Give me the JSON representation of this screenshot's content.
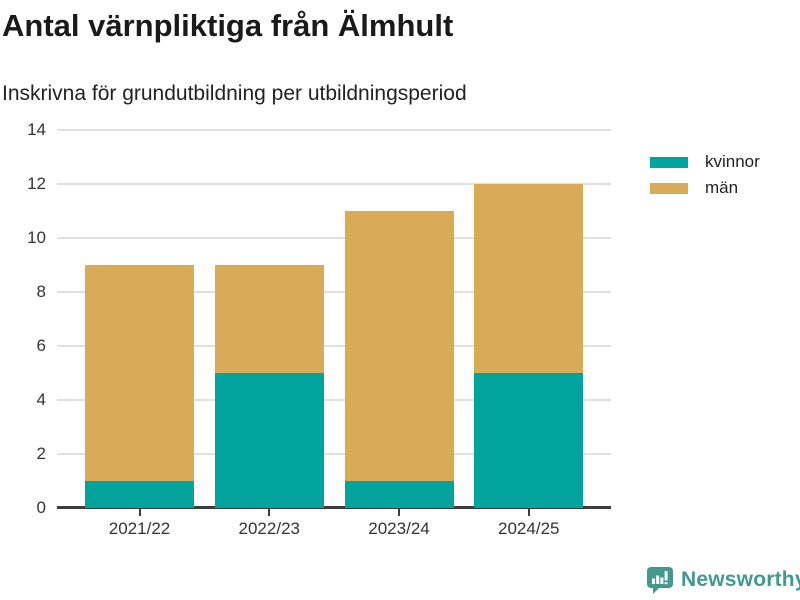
{
  "chart_data": {
    "type": "bar",
    "stacked": true,
    "title": "Antal värnpliktiga från Älmhult",
    "subtitle": "Inskrivna för grundutbildning per utbildningsperiod",
    "categories": [
      "2021/22",
      "2022/23",
      "2023/24",
      "2024/25"
    ],
    "series": [
      {
        "name": "kvinnor",
        "color": "#00a49c",
        "values": [
          1,
          5,
          1,
          5
        ]
      },
      {
        "name": "män",
        "color": "#d9ab57",
        "values": [
          8,
          4,
          10,
          7
        ]
      }
    ],
    "totals": [
      9,
      9,
      11,
      12
    ],
    "xlabel": "",
    "ylabel": "",
    "ylim": [
      0,
      14
    ],
    "yticks": [
      0,
      2,
      4,
      6,
      8,
      10,
      12,
      14
    ],
    "grid": true,
    "legend_position": "top-right"
  },
  "footer": {
    "brand": "Newsworthy",
    "logo_icon": "bar-chart-speech-bubble-icon",
    "brand_color": "#41998f"
  },
  "colors": {
    "background": "#ffffff",
    "title_text": "#1a1a1a",
    "axis_text": "#333333",
    "gridline": "#e0e0e0",
    "axis_line": "#3d3d3d",
    "kvinnor": "#00a49c",
    "man": "#d9ab57"
  }
}
